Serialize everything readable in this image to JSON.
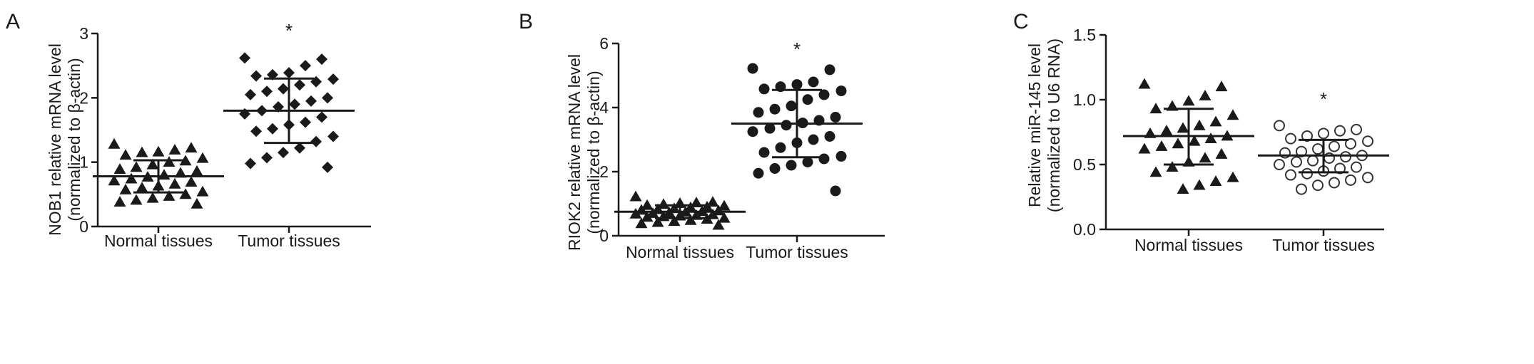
{
  "panels": [
    {
      "letter": "A",
      "ylabel_line1": "NOB1 relative mRNA level",
      "ylabel_line2": "(normalized to β-actin)",
      "significance": "*"
    },
    {
      "letter": "B",
      "ylabel_line1": "RIOK2 relative mRNA level",
      "ylabel_line2": "(normalized to β-actin)",
      "significance": "*"
    },
    {
      "letter": "C",
      "ylabel_line1": "Relative miR-145 level",
      "ylabel_line2": "(normalized to U6 RNA)",
      "significance": "*"
    }
  ],
  "chart_data": [
    {
      "type": "scatter",
      "title": "",
      "xlabel": "",
      "ylabel": "NOB1 relative mRNA level (normalized to β-actin)",
      "categories": [
        "Normal tissues",
        "Tumor tissues"
      ],
      "ylim": [
        0,
        3
      ],
      "yticks": [
        "0",
        "1",
        "2",
        "3"
      ],
      "grid": false,
      "significance": {
        "group": "Tumor tissues",
        "label": "*"
      },
      "series": [
        {
          "group": "Normal tissues",
          "marker": "triangle",
          "mean": 0.78,
          "sd_low": 0.53,
          "sd_high": 1.03,
          "values": [
            1.28,
            1.22,
            1.19,
            1.16,
            1.15,
            1.11,
            1.06,
            1.02,
            1.0,
            0.96,
            0.92,
            0.89,
            0.86,
            0.83,
            0.8,
            0.77,
            0.74,
            0.71,
            0.69,
            0.66,
            0.63,
            0.6,
            0.57,
            0.54,
            0.5,
            0.47,
            0.44,
            0.41,
            0.38,
            0.35
          ]
        },
        {
          "group": "Tumor tissues",
          "marker": "diamond",
          "mean": 1.8,
          "sd_low": 1.3,
          "sd_high": 2.3,
          "values": [
            2.62,
            2.6,
            2.5,
            2.39,
            2.36,
            2.34,
            2.29,
            2.25,
            2.2,
            2.14,
            2.1,
            2.05,
            2.0,
            1.95,
            1.9,
            1.86,
            1.8,
            1.75,
            1.7,
            1.62,
            1.58,
            1.52,
            1.48,
            1.4,
            1.32,
            1.22,
            1.15,
            1.07,
            0.98,
            0.92
          ]
        }
      ]
    },
    {
      "type": "scatter",
      "title": "",
      "xlabel": "",
      "ylabel": "RIOK2 relative mRNA level (normalized to β-actin)",
      "categories": [
        "Normal tissues",
        "Tumor tissues"
      ],
      "ylim": [
        0,
        6
      ],
      "yticks": [
        "0",
        "2",
        "4",
        "6"
      ],
      "grid": false,
      "significance": {
        "group": "Tumor tissues",
        "label": "*"
      },
      "series": [
        {
          "group": "Normal tissues",
          "marker": "triangle",
          "mean": 0.75,
          "sd_low": 0.55,
          "sd_high": 0.95,
          "values": [
            1.22,
            1.05,
            1.03,
            1.01,
            0.98,
            0.95,
            0.93,
            0.9,
            0.88,
            0.85,
            0.82,
            0.8,
            0.78,
            0.76,
            0.74,
            0.72,
            0.7,
            0.68,
            0.66,
            0.64,
            0.62,
            0.6,
            0.58,
            0.55,
            0.52,
            0.48,
            0.45,
            0.42,
            0.38,
            0.33
          ]
        },
        {
          "group": "Tumor tissues",
          "marker": "circle",
          "mean": 3.5,
          "sd_low": 2.45,
          "sd_high": 4.55,
          "values": [
            5.22,
            5.18,
            4.8,
            4.72,
            4.65,
            4.58,
            4.52,
            4.4,
            4.25,
            4.05,
            3.95,
            3.85,
            3.7,
            3.6,
            3.52,
            3.45,
            3.35,
            3.25,
            3.1,
            3.0,
            2.9,
            2.75,
            2.6,
            2.48,
            2.4,
            2.3,
            2.2,
            2.1,
            1.95,
            1.4
          ]
        }
      ]
    },
    {
      "type": "scatter",
      "title": "",
      "xlabel": "",
      "ylabel": "Relative miR-145 level (normalized to U6 RNA)",
      "categories": [
        "Normal tissues",
        "Tumor tissues"
      ],
      "ylim": [
        0,
        1.5
      ],
      "yticks": [
        "0.0",
        "0.5",
        "1.0",
        "1.5"
      ],
      "grid": false,
      "significance": {
        "group": "Tumor tissues",
        "label": "*"
      },
      "series": [
        {
          "group": "Normal tissues",
          "marker": "triangle",
          "mean": 0.72,
          "sd_low": 0.5,
          "sd_high": 0.93,
          "values": [
            1.12,
            1.1,
            1.03,
            0.99,
            0.95,
            0.93,
            0.88,
            0.83,
            0.8,
            0.78,
            0.76,
            0.74,
            0.72,
            0.7,
            0.68,
            0.66,
            0.64,
            0.62,
            0.58,
            0.55,
            0.52,
            0.48,
            0.44,
            0.4,
            0.37,
            0.34,
            0.31
          ]
        },
        {
          "group": "Tumor tissues",
          "marker": "open-circle",
          "mean": 0.57,
          "sd_low": 0.44,
          "sd_high": 0.69,
          "values": [
            0.8,
            0.77,
            0.76,
            0.74,
            0.72,
            0.7,
            0.68,
            0.66,
            0.64,
            0.62,
            0.6,
            0.59,
            0.57,
            0.56,
            0.55,
            0.53,
            0.52,
            0.5,
            0.48,
            0.47,
            0.45,
            0.43,
            0.42,
            0.4,
            0.38,
            0.36,
            0.34,
            0.31
          ]
        }
      ]
    }
  ]
}
